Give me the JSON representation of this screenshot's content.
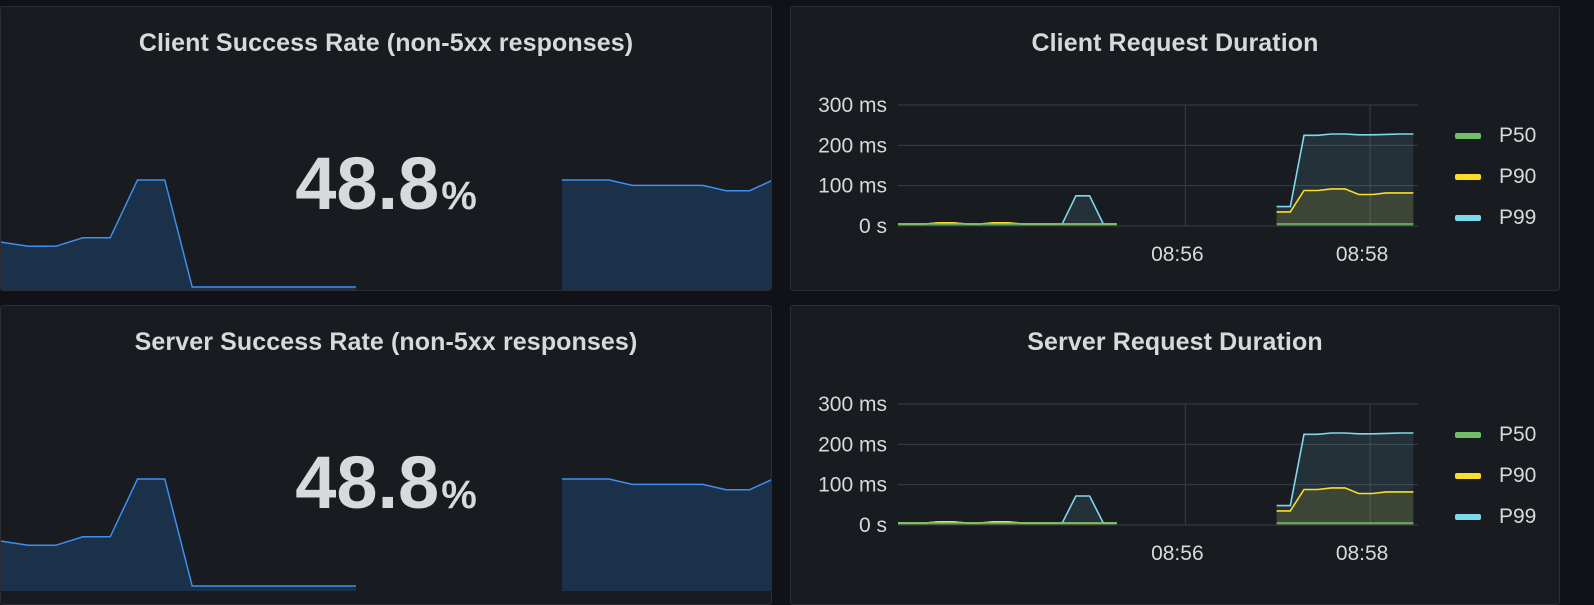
{
  "colors": {
    "background": "#111217",
    "panel": "#181b1f",
    "text": "#d8d9da",
    "grid": "#3a3d44",
    "spark_line": "#3d8ff0",
    "spark_fill": "#1b3049",
    "p50": "#73bf69",
    "p90": "#fade2a",
    "p99": "#7ed8ee"
  },
  "panels": {
    "client_success": {
      "title": "Client Success Rate (non-5xx responses)",
      "value": "48.8",
      "unit": "%"
    },
    "client_duration": {
      "title": "Client Request Duration"
    },
    "server_success": {
      "title": "Server Success Rate (non-5xx responses)",
      "value": "48.8",
      "unit": "%"
    },
    "server_duration": {
      "title": "Server Request Duration"
    }
  },
  "chart_data": [
    {
      "type": "line",
      "title": "Client Request Duration",
      "y_ticks": [
        "300 ms",
        "200 ms",
        "100 ms",
        "0 s"
      ],
      "ylim": [
        0,
        300
      ],
      "x_ticks": [
        "08:56",
        "08:58"
      ],
      "grid": true,
      "legend_position": "right",
      "series_names": [
        "P50",
        "P90",
        "P99"
      ],
      "segments": [
        {
          "x": [
            0,
            0.3,
            0.6,
            0.9,
            1.2,
            1.5,
            1.8,
            2.1,
            2.4,
            2.7,
            3.0,
            3.3,
            3.6,
            3.9,
            4.2,
            4.5,
            4.8
          ],
          "series": [
            {
              "name": "P50",
              "values": [
                5,
                5,
                5,
                5,
                5,
                5,
                5,
                5,
                5,
                5,
                5,
                5,
                5,
                5,
                5,
                5,
                5
              ]
            },
            {
              "name": "P90",
              "values": [
                5,
                5,
                5,
                8,
                8,
                5,
                5,
                8,
                8,
                5,
                5,
                5,
                5,
                5,
                5,
                5,
                5
              ]
            },
            {
              "name": "P99",
              "values": [
                5,
                5,
                5,
                8,
                8,
                5,
                5,
                8,
                8,
                5,
                5,
                5,
                5,
                75,
                75,
                5,
                5
              ]
            }
          ]
        },
        {
          "x": [
            8.3,
            8.6,
            8.9,
            9.2,
            9.5,
            9.8,
            10.1,
            10.4,
            10.7,
            11.0,
            11.3
          ],
          "series": [
            {
              "name": "P50",
              "values": [
                5,
                5,
                5,
                5,
                5,
                5,
                5,
                5,
                5,
                5,
                5
              ]
            },
            {
              "name": "P90",
              "values": [
                35,
                35,
                88,
                88,
                92,
                92,
                78,
                78,
                82,
                82,
                82
              ]
            },
            {
              "name": "P99",
              "values": [
                48,
                48,
                225,
                225,
                228,
                228,
                226,
                226,
                227,
                228,
                228
              ]
            }
          ]
        }
      ]
    },
    {
      "type": "line",
      "title": "Server Request Duration",
      "y_ticks": [
        "300 ms",
        "200 ms",
        "100 ms",
        "0 s"
      ],
      "ylim": [
        0,
        300
      ],
      "x_ticks": [
        "08:56",
        "08:58"
      ],
      "grid": true,
      "legend_position": "right",
      "series_names": [
        "P50",
        "P90",
        "P99"
      ],
      "segments": [
        {
          "x": [
            0,
            0.3,
            0.6,
            0.9,
            1.2,
            1.5,
            1.8,
            2.1,
            2.4,
            2.7,
            3.0,
            3.3,
            3.6,
            3.9,
            4.2,
            4.5,
            4.8
          ],
          "series": [
            {
              "name": "P50",
              "values": [
                5,
                5,
                5,
                5,
                5,
                5,
                5,
                5,
                5,
                5,
                5,
                5,
                5,
                5,
                5,
                5,
                5
              ]
            },
            {
              "name": "P90",
              "values": [
                5,
                5,
                5,
                8,
                8,
                5,
                5,
                8,
                8,
                5,
                5,
                5,
                5,
                5,
                5,
                5,
                5
              ]
            },
            {
              "name": "P99",
              "values": [
                5,
                5,
                5,
                8,
                8,
                5,
                5,
                8,
                8,
                5,
                5,
                5,
                5,
                72,
                72,
                5,
                5
              ]
            }
          ]
        },
        {
          "x": [
            8.3,
            8.6,
            8.9,
            9.2,
            9.5,
            9.8,
            10.1,
            10.4,
            10.7,
            11.0,
            11.3
          ],
          "series": [
            {
              "name": "P50",
              "values": [
                5,
                5,
                5,
                5,
                5,
                5,
                5,
                5,
                5,
                5,
                5
              ]
            },
            {
              "name": "P90",
              "values": [
                35,
                35,
                88,
                88,
                92,
                92,
                78,
                78,
                82,
                82,
                82
              ]
            },
            {
              "name": "P99",
              "values": [
                48,
                48,
                225,
                225,
                228,
                228,
                226,
                226,
                227,
                228,
                228
              ]
            }
          ]
        }
      ]
    }
  ],
  "sparkline": {
    "segments": [
      [
        0.42,
        0.38,
        0.38,
        0.46,
        0.46,
        1.0,
        1.0,
        0.0,
        0.0,
        0.0,
        0.0,
        0.0,
        0.0,
        0.0
      ],
      [
        1.0,
        1.0,
        1.0,
        0.95,
        0.95,
        0.95,
        0.95,
        0.9,
        0.9,
        1.0
      ]
    ]
  }
}
